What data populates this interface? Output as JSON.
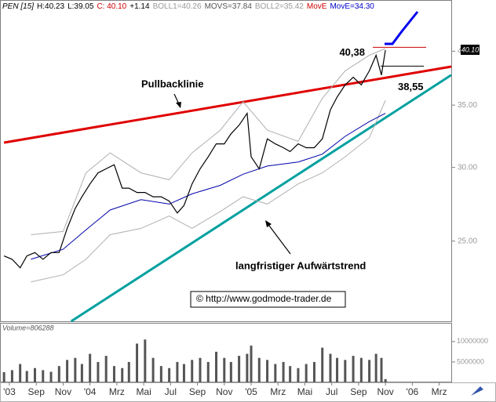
{
  "chart_data": [
    {
      "type": "line",
      "header_items": [
        {
          "text": "PEN [15]",
          "color": "#000000"
        },
        {
          "text": "H:40.23",
          "color": "#000000"
        },
        {
          "text": "L:39.05",
          "color": "#000000"
        },
        {
          "text": "C: 40.10",
          "color": "#cc0000"
        },
        {
          "text": "+1.14",
          "color": "#000000"
        },
        {
          "text": "BOLL1=40.26",
          "color": "#999999"
        },
        {
          "text": "MOVS=37.84",
          "color": "#555555"
        },
        {
          "text": "BOLL2=35.42",
          "color": "#999999"
        },
        {
          "text": "MovE",
          "color": "#cc0000"
        },
        {
          "text": "MovE=34.30",
          "color": "#0000cc"
        }
      ],
      "y_scale": "log",
      "xlim": [
        -0.7,
        32.9
      ],
      "ylim": [
        20.5,
        45.4
      ],
      "xticks": [
        {
          "value": 0,
          "label": "'03"
        },
        {
          "value": 2,
          "label": "Sep"
        },
        {
          "value": 4,
          "label": "Nov"
        },
        {
          "value": 6,
          "label": "'04"
        },
        {
          "value": 8,
          "label": "Mrz"
        },
        {
          "value": 10,
          "label": "Mai"
        },
        {
          "value": 12,
          "label": "Jul"
        },
        {
          "value": 14,
          "label": "Sep"
        },
        {
          "value": 16,
          "label": "Nov"
        },
        {
          "value": 18,
          "label": "'05"
        },
        {
          "value": 20,
          "label": "Mrz"
        },
        {
          "value": 22,
          "label": "Mai"
        },
        {
          "value": 24,
          "label": "Jul"
        },
        {
          "value": 26,
          "label": "Sep"
        },
        {
          "value": 28,
          "label": "Nov"
        },
        {
          "value": 30,
          "label": "'06"
        },
        {
          "value": 32,
          "label": "Mrz"
        }
      ],
      "yticks": [
        {
          "value": 25,
          "label": "25.00"
        },
        {
          "value": 30,
          "label": "30.00"
        },
        {
          "value": 35,
          "label": "35.00"
        },
        {
          "value": 40,
          "label": "40.00"
        }
      ],
      "series": [
        {
          "color": "#000000",
          "width": 1.2,
          "x": [
            -0.4,
            0.2,
            0.8,
            1.3,
            1.9,
            2.5,
            3.1,
            3.7,
            4.3,
            4.9,
            5.4,
            6.0,
            6.6,
            7.2,
            7.8,
            8.4,
            8.9,
            9.5,
            10.1,
            10.7,
            11.3,
            11.9,
            12.5,
            13.0,
            13.6,
            14.2,
            14.8,
            15.4,
            16.0,
            16.5,
            17.1,
            17.7,
            18.0,
            18.6,
            19.2,
            19.8,
            20.4,
            20.9,
            21.5,
            22.1,
            22.7,
            23.3,
            23.9,
            24.4,
            25.0,
            25.6,
            26.2,
            26.8,
            27.3,
            27.7,
            28.0
          ],
          "values": [
            24.1,
            23.9,
            23.4,
            24.1,
            24.3,
            23.9,
            24.3,
            24.3,
            25.8,
            27.1,
            27.9,
            28.8,
            29.6,
            29.9,
            30.2,
            28.5,
            28.5,
            28.2,
            28.2,
            27.9,
            27.9,
            27.6,
            26.8,
            27.3,
            28.8,
            29.9,
            30.8,
            31.8,
            31.8,
            32.6,
            33.3,
            34.3,
            30.8,
            29.9,
            32.2,
            31.8,
            31.5,
            31.2,
            31.8,
            31.5,
            31.5,
            32.2,
            34.6,
            35.7,
            36.8,
            37.5,
            36.8,
            38.1,
            39.6,
            37.7,
            40.1
          ]
        },
        {
          "color": "#0000aa",
          "width": 1,
          "x": [
            1.6,
            4.0,
            5.7,
            7.5,
            9.8,
            11.9,
            13.6,
            15.7,
            17.4,
            19.2,
            21.5,
            23.3,
            25.0,
            26.8,
            28.0
          ],
          "values": [
            23.9,
            24.5,
            25.7,
            27.0,
            27.7,
            27.4,
            28.1,
            28.7,
            29.5,
            30.1,
            30.4,
            31.0,
            32.4,
            33.6,
            34.3
          ]
        },
        {
          "color": "#b0b0b0",
          "width": 1,
          "x": [
            1.6,
            4.0,
            5.7,
            7.5,
            9.8,
            11.9,
            13.6,
            15.7,
            17.4,
            19.2,
            21.5,
            23.3,
            25.0,
            26.8,
            28.0
          ],
          "values": [
            25.4,
            25.6,
            29.6,
            31.1,
            29.6,
            29.1,
            31.1,
            32.9,
            35.3,
            32.9,
            32.0,
            35.6,
            38.1,
            39.6,
            40.26
          ]
        },
        {
          "color": "#b0b0b0",
          "width": 1,
          "x": [
            1.6,
            4.0,
            5.7,
            7.5,
            9.8,
            11.9,
            13.6,
            15.7,
            17.4,
            19.2,
            21.5,
            23.3,
            25.0,
            26.8,
            28.0
          ],
          "values": [
            22.6,
            23.0,
            23.9,
            25.4,
            25.8,
            26.6,
            25.8,
            26.9,
            27.9,
            27.4,
            28.8,
            29.6,
            30.8,
            32.3,
            35.42
          ]
        }
      ],
      "trendlines": [
        {
          "color": "#e00000",
          "x": [
            -0.4,
            32.9
          ],
          "y": [
            31.9,
            38.5
          ]
        },
        {
          "color": "#00a0a0",
          "x": [
            4.6,
            32.9
          ],
          "y": [
            20.5,
            37.7
          ]
        }
      ],
      "levels": [
        {
          "text": "40,38",
          "value": 40.38,
          "color": "#cc0000"
        },
        {
          "text": "38,55",
          "value": 38.55,
          "color": "#000000"
        }
      ],
      "last_price": {
        "value": 40.1,
        "label": "40.10"
      },
      "labels": [
        "Pullbacklinie",
        "langfristiger Aufwärtstrend"
      ],
      "watermark": "© http://www.godmode-trader.de"
    },
    {
      "type": "bar",
      "title": "Volume=806288",
      "color": "#555555",
      "xlim": [
        -0.7,
        32.9
      ],
      "ylim": [
        0,
        14000000
      ],
      "yticks": [
        5000000,
        10000000
      ],
      "x": [
        -0.4,
        0.2,
        0.8,
        1.3,
        1.9,
        2.5,
        3.1,
        3.7,
        4.3,
        4.9,
        5.4,
        6.0,
        6.6,
        7.2,
        7.8,
        8.4,
        8.9,
        9.5,
        10.1,
        10.7,
        11.3,
        11.9,
        12.5,
        13.0,
        13.6,
        14.2,
        14.8,
        15.4,
        16.0,
        16.5,
        17.1,
        17.7,
        18.0,
        18.6,
        19.2,
        19.8,
        20.4,
        20.9,
        21.5,
        22.1,
        22.7,
        23.3,
        23.9,
        24.4,
        25.0,
        25.6,
        26.2,
        26.8,
        27.3,
        27.7,
        28.0
      ],
      "values": [
        2500000,
        3000000,
        4500000,
        2800000,
        3500000,
        3000000,
        2600000,
        4000000,
        5500000,
        6000000,
        4500000,
        7000000,
        5000000,
        6500000,
        4000000,
        3500000,
        5000000,
        9500000,
        10500000,
        6000000,
        4000000,
        3500000,
        5000000,
        4500000,
        5500000,
        6000000,
        5000000,
        7500000,
        6000000,
        5000000,
        6500000,
        7000000,
        9000000,
        6000000,
        5500000,
        4500000,
        5000000,
        4000000,
        3500000,
        4500000,
        5000000,
        8500000,
        7000000,
        6000000,
        5500000,
        6500000,
        6000000,
        5500000,
        7000000,
        6000000,
        806288
      ]
    }
  ]
}
